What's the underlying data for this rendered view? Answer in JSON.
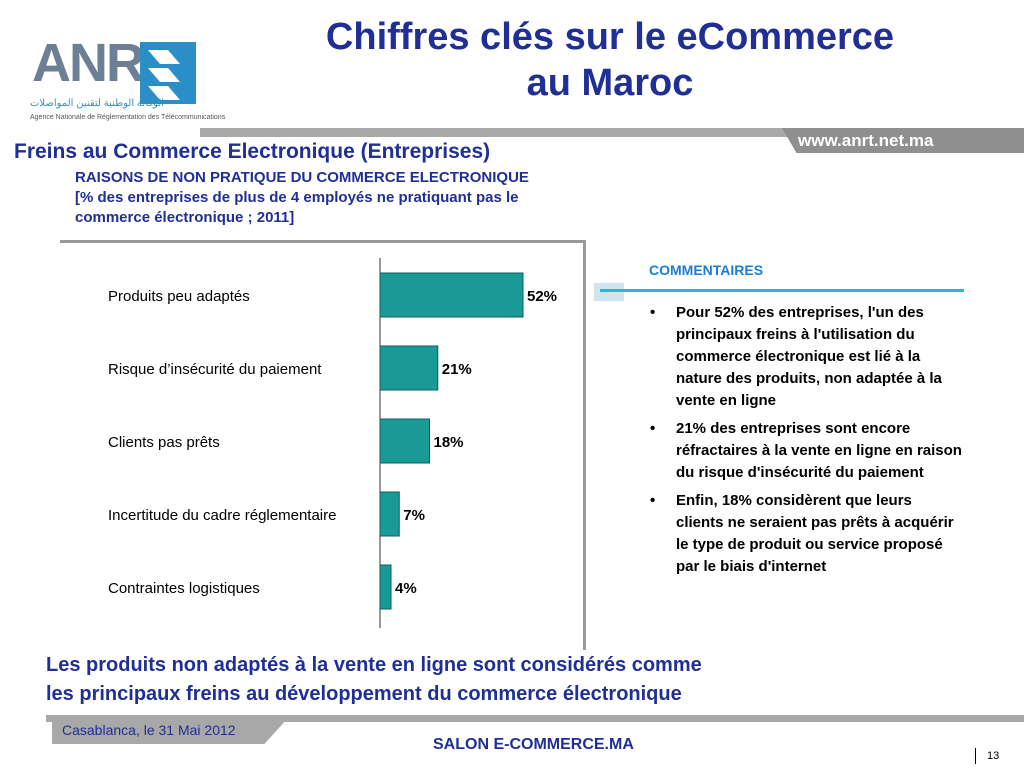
{
  "logo": {
    "text": "ANRT",
    "arabic": "الوكالة الوطنية لتقنين المواصلات",
    "subtitle": "Agence Nationale de Réglementation des Télécommunications"
  },
  "title_line1": "Chiffres clés sur  le eCommerce",
  "title_line2": "au Maroc",
  "url": "www.anrt.net.ma",
  "section_title": "Freins au Commerce Electronique (Entreprises)",
  "chart_heading_line1": "RAISONS DE NON PRATIQUE DU COMMERCE ELECTRONIQUE",
  "chart_heading_line2": "[% des entreprises de plus de 4 employés ne pratiquant pas le",
  "chart_heading_line3": "commerce électronique ; 2011]",
  "colors": {
    "bar": "#199a97",
    "title": "#1f2f95",
    "accent": "#29b3e6"
  },
  "chart_data": {
    "type": "bar",
    "orientation": "horizontal",
    "categories": [
      "Produits peu adaptés",
      "Risque d’insécurité du paiement",
      "Clients pas prêts",
      "Incertitude du cadre réglementaire",
      "Contraintes logistiques"
    ],
    "values": [
      52,
      21,
      18,
      7,
      4
    ],
    "value_labels": [
      "52%",
      "21%",
      "18%",
      "7%",
      "4%"
    ],
    "unit": "%",
    "xlim": [
      0,
      60
    ],
    "grid": false,
    "legend": "none"
  },
  "comments": {
    "title": "COMMENTAIRES",
    "items": [
      "Pour 52% des entreprises, l'un des principaux freins à l'utilisation du commerce électronique est lié à la nature des produits, non adaptée à la vente en ligne",
      "21% des entreprises sont encore réfractaires à la vente en ligne en raison du risque d'insécurité du paiement",
      "Enfin, 18% considèrent que leurs clients ne seraient pas prêts à acquérir le type de produit ou service proposé par le biais d'internet"
    ]
  },
  "conclusion_line1": "Les produits non adaptés à la vente en ligne sont considérés comme",
  "conclusion_line2": "les principaux freins au développement du commerce électronique",
  "footer": {
    "date": "Casablanca, le 31 Mai 2012",
    "event": "SALON E-COMMERCE.MA",
    "page_number": "13"
  }
}
